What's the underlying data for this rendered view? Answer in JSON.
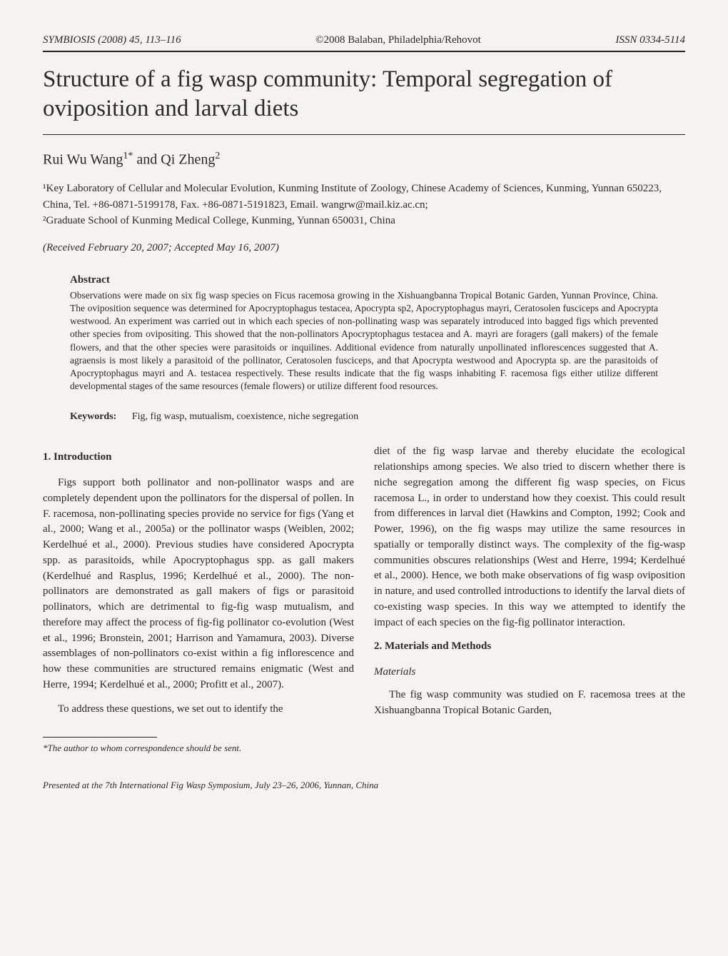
{
  "header": {
    "journal": "SYMBIOSIS (2008) 45, 113–116",
    "copyright": "©2008 Balaban, Philadelphia/Rehovot",
    "issn": "ISSN 0334-5114"
  },
  "title": "Structure of a fig wasp community: Temporal segregation of oviposition and larval diets",
  "authors_html": "Rui Wu Wang<sup>1*</sup> and Qi Zheng<sup>2</sup>",
  "affiliations": {
    "a1": "¹Key Laboratory of Cellular and Molecular Evolution, Kunming Institute of Zoology, Chinese Academy of Sciences, Kunming, Yunnan 650223, China, Tel. +86-0871-5199178, Fax. +86-0871-5191823, Email. wangrw@mail.kiz.ac.cn;",
    "a2": "²Graduate School of Kunming Medical College, Kunming, Yunnan 650031, China"
  },
  "received": "(Received February 20, 2007; Accepted May 16, 2007)",
  "abstract": {
    "heading": "Abstract",
    "text": "Observations were made on six fig wasp species on Ficus racemosa growing in the Xishuangbanna Tropical Botanic Garden, Yunnan Province, China. The oviposition sequence was determined for Apocryptophagus testacea, Apocrypta sp2, Apocryptophagus mayri, Ceratosolen fusciceps and Apocrypta westwood. An experiment was carried out in which each species of non-pollinating wasp was separately introduced into bagged figs which prevented other species from ovipositing. This showed that the non-pollinators Apocryptophagus testacea and A. mayri are foragers (gall makers) of the female flowers, and that the other species were parasitoids or inquilines. Additional evidence from naturally unpollinated inflorescences suggested that A. agraensis is most likely a parasitoid of the pollinator, Ceratosolen fusciceps, and that Apocrypta westwood and Apocrypta sp. are the parasitoids of Apocryptophagus mayri and A. testacea respectively. These results indicate that the fig wasps inhabiting F. racemosa figs either utilize different developmental stages of the same resources (female flowers) or utilize different food resources."
  },
  "keywords": {
    "label": "Keywords:",
    "text": "Fig, fig wasp, mutualism, coexistence, niche segregation"
  },
  "sections": {
    "intro_heading": "1. Introduction",
    "intro_p1": "Figs support both pollinator and non-pollinator wasps and are completely dependent upon the pollinators for the dispersal of pollen. In F. racemosa, non-pollinating species provide no service for figs (Yang et al., 2000; Wang et al., 2005a) or the pollinator wasps (Weiblen, 2002; Kerdelhué et al., 2000). Previous studies have considered Apocrypta spp. as parasitoids, while Apocryptophagus spp. as gall makers (Kerdelhué and Rasplus, 1996; Kerdelhué et al., 2000). The non-pollinators are demonstrated as gall makers of figs or parasitoid pollinators, which are detrimental to fig-fig wasp mutualism, and therefore may affect the process of fig-fig pollinator co-evolution (West et al., 1996; Bronstein, 2001; Harrison and Yamamura, 2003). Diverse assemblages of non-pollinators co-exist within a fig inflorescence and how these communities are structured remains enigmatic (West and Herre, 1994; Kerdelhué et al., 2000; Profitt et al., 2007).",
    "intro_p2": "To address these questions, we set out to identify the",
    "col2_p1": "diet of the fig wasp larvae and thereby elucidate the ecological relationships among species. We also tried to discern whether there is niche segregation among the different fig wasp species, on Ficus racemosa L., in order to understand how they coexist. This could result from differences in larval diet (Hawkins and Compton, 1992; Cook and Power, 1996), on the fig wasps may utilize the same resources in spatially or temporally distinct ways. The complexity of the fig-wasp communities obscures relationships (West and Herre, 1994; Kerdelhué et al., 2000). Hence, we both make observations of fig wasp oviposition in nature, and used controlled introductions to identify the larval diets of co-existing wasp species. In this way we attempted to identify the impact of each species on the fig-fig pollinator interaction.",
    "methods_heading": "2. Materials and Methods",
    "materials_sub": "Materials",
    "methods_p1": "The fig wasp community was studied on F. racemosa trees at the Xishuangbanna Tropical Botanic Garden,"
  },
  "footnote": "*The author to whom correspondence should be sent.",
  "presented": "Presented at the 7th International Fig Wasp Symposium, July 23–26, 2006, Yunnan, China"
}
